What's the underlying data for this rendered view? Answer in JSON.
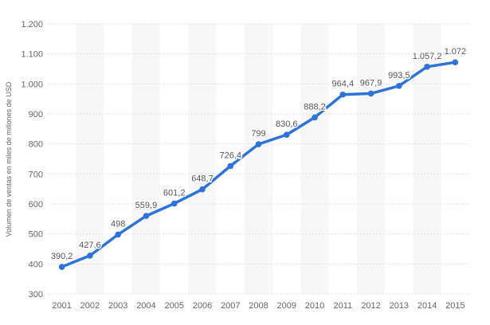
{
  "chart_data": {
    "type": "line",
    "title": "",
    "xlabel": "",
    "ylabel": "Volumen de ventas en miles de millones de USD",
    "x": [
      "2001",
      "2002",
      "2003",
      "2004",
      "2005",
      "2006",
      "2007",
      "2008",
      "2009",
      "2010",
      "2011",
      "2012",
      "2013",
      "2014",
      "2015"
    ],
    "values": [
      390.2,
      427.6,
      498,
      559.9,
      601.2,
      648.7,
      726.4,
      799,
      830.6,
      888.2,
      964.4,
      967.9,
      993.5,
      1057.2,
      1072
    ],
    "value_labels": [
      "390,2",
      "427,6",
      "498",
      "559,9",
      "601,2",
      "648,7",
      "726,4",
      "799",
      "830,6",
      "888,2",
      "964,4",
      "967,9",
      "993,5",
      "1.057,2",
      "1.072"
    ],
    "ylim": [
      300,
      1200
    ],
    "yticks": [
      300,
      400,
      500,
      600,
      700,
      800,
      900,
      1000,
      1100,
      1200
    ],
    "ytick_labels": [
      "300",
      "400",
      "500",
      "600",
      "700",
      "800",
      "900",
      "1.000",
      "1.100",
      "1.200"
    ],
    "grid": true,
    "alternating_column_bands": true,
    "legend": "none",
    "colors": {
      "line": "#2e73d9",
      "marker": "#2e73d9",
      "band": "#f7f7f7",
      "grid": "#e2e2e2",
      "axis_text": "#666666",
      "label_text": "#555555"
    }
  }
}
